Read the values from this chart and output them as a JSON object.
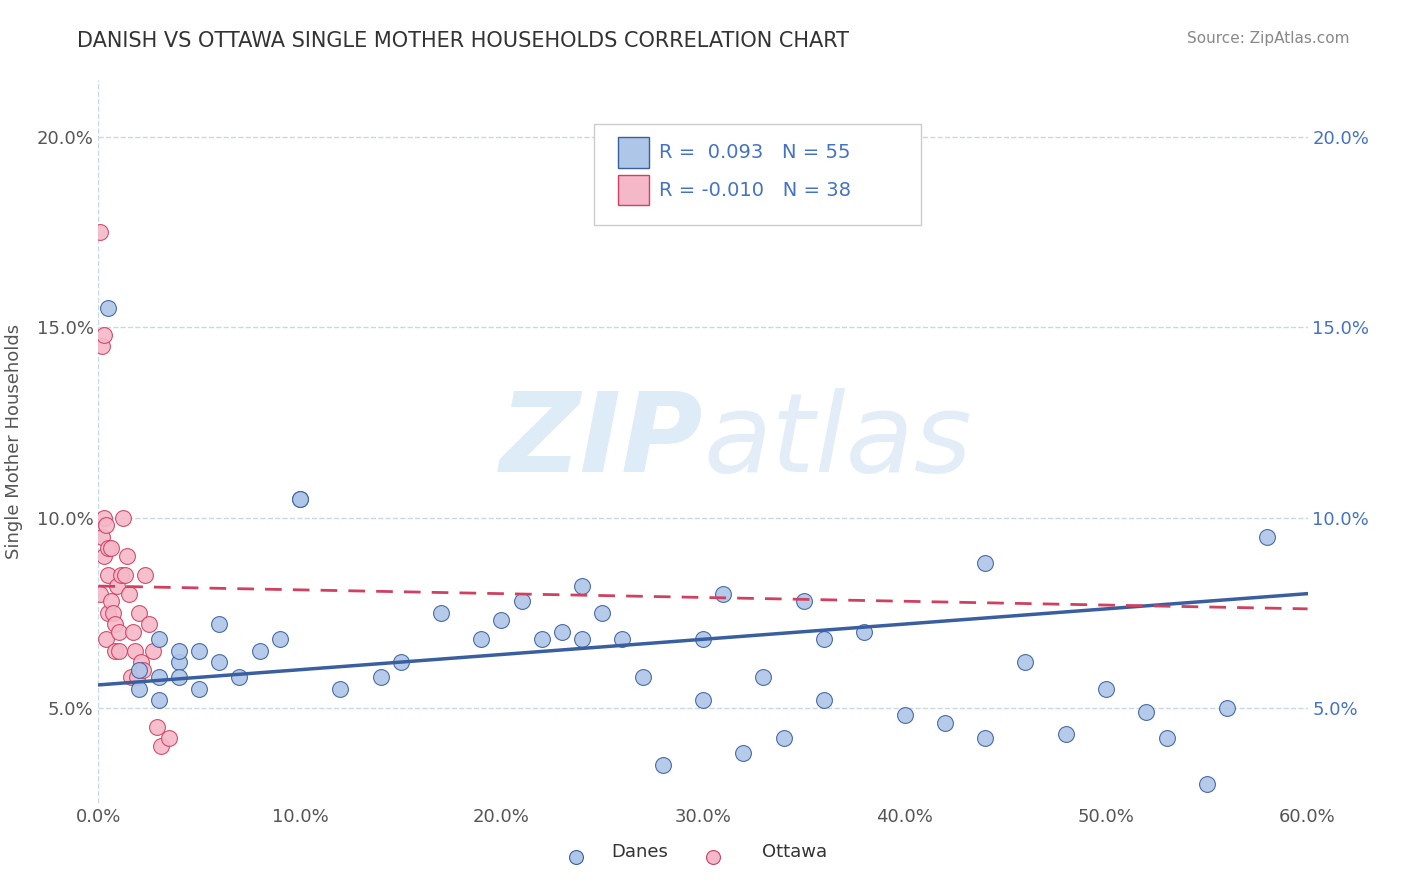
{
  "title": "DANISH VS OTTAWA SINGLE MOTHER HOUSEHOLDS CORRELATION CHART",
  "source": "Source: ZipAtlas.com",
  "ylabel": "Single Mother Households",
  "xlim": [
    0.0,
    0.6
  ],
  "ylim": [
    0.025,
    0.215
  ],
  "xticks": [
    0.0,
    0.1,
    0.2,
    0.3,
    0.4,
    0.5,
    0.6
  ],
  "xticklabels": [
    "0.0%",
    "10.0%",
    "20.0%",
    "30.0%",
    "40.0%",
    "50.0%",
    "60.0%"
  ],
  "yticks": [
    0.05,
    0.1,
    0.15,
    0.2
  ],
  "yticklabels": [
    "5.0%",
    "10.0%",
    "15.0%",
    "20.0%"
  ],
  "r_danes": 0.093,
  "n_danes": 55,
  "r_ottawa": -0.01,
  "n_ottawa": 38,
  "dot_color_danes": "#aec6e8",
  "dot_color_ottawa": "#f4b8c8",
  "line_color_danes": "#3a5fa0",
  "line_color_ottawa": "#d04060",
  "background_color": "#ffffff",
  "grid_color": "#c8d8e8",
  "danes_x": [
    0.005,
    0.02,
    0.02,
    0.03,
    0.03,
    0.03,
    0.04,
    0.04,
    0.04,
    0.05,
    0.05,
    0.06,
    0.06,
    0.07,
    0.08,
    0.09,
    0.1,
    0.1,
    0.12,
    0.14,
    0.15,
    0.17,
    0.19,
    0.2,
    0.21,
    0.22,
    0.23,
    0.24,
    0.24,
    0.25,
    0.26,
    0.27,
    0.28,
    0.3,
    0.31,
    0.32,
    0.34,
    0.36,
    0.38,
    0.4,
    0.42,
    0.44,
    0.46,
    0.48,
    0.5,
    0.53,
    0.56,
    0.58,
    0.3,
    0.33,
    0.35,
    0.36,
    0.44,
    0.52,
    0.55
  ],
  "danes_y": [
    0.155,
    0.06,
    0.055,
    0.068,
    0.058,
    0.052,
    0.062,
    0.065,
    0.058,
    0.065,
    0.055,
    0.072,
    0.062,
    0.058,
    0.065,
    0.068,
    0.105,
    0.105,
    0.055,
    0.058,
    0.062,
    0.075,
    0.068,
    0.073,
    0.078,
    0.068,
    0.07,
    0.082,
    0.068,
    0.075,
    0.068,
    0.058,
    0.035,
    0.052,
    0.08,
    0.038,
    0.042,
    0.052,
    0.07,
    0.048,
    0.046,
    0.042,
    0.062,
    0.043,
    0.055,
    0.042,
    0.05,
    0.095,
    0.068,
    0.058,
    0.078,
    0.068,
    0.088,
    0.049,
    0.03
  ],
  "ottawa_x": [
    0.001,
    0.001,
    0.002,
    0.002,
    0.003,
    0.003,
    0.003,
    0.004,
    0.004,
    0.005,
    0.005,
    0.005,
    0.006,
    0.006,
    0.007,
    0.008,
    0.008,
    0.009,
    0.01,
    0.01,
    0.011,
    0.012,
    0.013,
    0.014,
    0.015,
    0.016,
    0.017,
    0.018,
    0.019,
    0.02,
    0.021,
    0.022,
    0.023,
    0.025,
    0.027,
    0.029,
    0.031,
    0.035
  ],
  "ottawa_y": [
    0.175,
    0.08,
    0.145,
    0.095,
    0.148,
    0.1,
    0.09,
    0.098,
    0.068,
    0.092,
    0.085,
    0.075,
    0.092,
    0.078,
    0.075,
    0.072,
    0.065,
    0.082,
    0.07,
    0.065,
    0.085,
    0.1,
    0.085,
    0.09,
    0.08,
    0.058,
    0.07,
    0.065,
    0.058,
    0.075,
    0.062,
    0.06,
    0.085,
    0.072,
    0.065,
    0.045,
    0.04,
    0.042
  ],
  "danes_trend": [
    0.0,
    0.6,
    0.056,
    0.08
  ],
  "ottawa_trend": [
    0.0,
    0.6,
    0.082,
    0.076
  ]
}
